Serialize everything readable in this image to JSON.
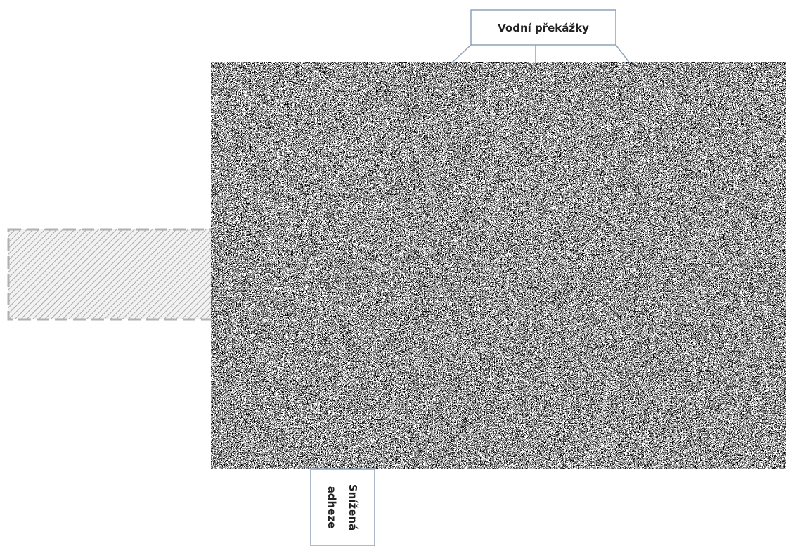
{
  "callouts": {
    "top": {
      "label": "Vodní překážky"
    },
    "bottom": {
      "lines": [
        "Snížená",
        "adheze"
      ]
    }
  }
}
